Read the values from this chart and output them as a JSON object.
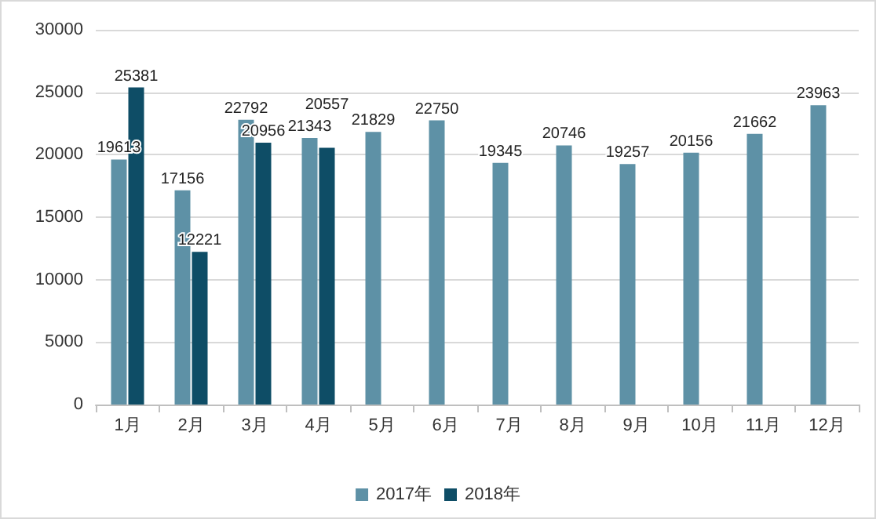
{
  "chart_data": {
    "type": "bar",
    "categories": [
      "1月",
      "2月",
      "3月",
      "4月",
      "5月",
      "6月",
      "7月",
      "8月",
      "9月",
      "10月",
      "11月",
      "12月"
    ],
    "series": [
      {
        "name": "2017年",
        "color": "#5e91a6",
        "values": [
          19613,
          17156,
          22792,
          21343,
          21829,
          22750,
          19345,
          20746,
          19257,
          20156,
          21662,
          23963
        ]
      },
      {
        "name": "2018年",
        "color": "#0e4d66",
        "values": [
          25381,
          12221,
          20956,
          20557,
          null,
          null,
          null,
          null,
          null,
          null,
          null,
          null
        ]
      }
    ],
    "ylim": [
      0,
      30000
    ],
    "yticks": [
      0,
      5000,
      10000,
      15000,
      20000,
      25000,
      30000
    ],
    "grid": "y",
    "legend": "bottom",
    "data_labels": true
  }
}
